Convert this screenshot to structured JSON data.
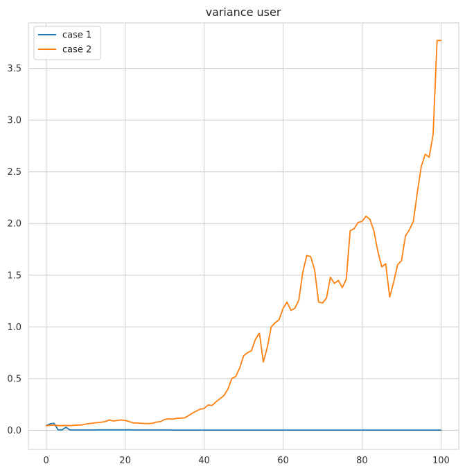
{
  "chart_data": {
    "type": "line",
    "title": "variance user",
    "xlabel": "",
    "ylabel": "",
    "xlim": [
      -4.5,
      104.5
    ],
    "ylim": [
      -0.185,
      3.94
    ],
    "grid": true,
    "legend_position": "top-left",
    "x_ticks": [
      0,
      20,
      40,
      60,
      80,
      100
    ],
    "x_tick_labels": [
      "0",
      "20",
      "40",
      "60",
      "80",
      "100"
    ],
    "y_ticks": [
      0.0,
      0.5,
      1.0,
      1.5,
      2.0,
      2.5,
      3.0,
      3.5
    ],
    "y_tick_labels": [
      "0.0",
      "0.5",
      "1.0",
      "1.5",
      "2.0",
      "2.5",
      "3.0",
      "3.5"
    ],
    "series": [
      {
        "name": "case 1",
        "color": "#1f77b4",
        "x": [
          0,
          1,
          2,
          3,
          4,
          5,
          6,
          7,
          8,
          9,
          10,
          11,
          12,
          13,
          14,
          15,
          16,
          17,
          18,
          19,
          20,
          21,
          22,
          23,
          24,
          25,
          26,
          27,
          28,
          29,
          30,
          31,
          32,
          33,
          34,
          35,
          36,
          37,
          38,
          39,
          40,
          41,
          42,
          43,
          44,
          45,
          46,
          47,
          48,
          49,
          50,
          51,
          52,
          53,
          54,
          55,
          56,
          57,
          58,
          59,
          60,
          61,
          62,
          63,
          64,
          65,
          66,
          67,
          68,
          69,
          70,
          71,
          72,
          73,
          74,
          75,
          76,
          77,
          78,
          79,
          80,
          81,
          82,
          83,
          84,
          85,
          86,
          87,
          88,
          89,
          90,
          91,
          92,
          93,
          94,
          95,
          96,
          97,
          98,
          99,
          100
        ],
        "values": [
          0.045,
          0.062,
          0.068,
          0.005,
          0.004,
          0.03,
          0.004,
          0.003,
          0.003,
          0.003,
          0.003,
          0.003,
          0.003,
          0.004,
          0.004,
          0.004,
          0.004,
          0.004,
          0.004,
          0.004,
          0.004,
          0.005,
          0.003,
          0.003,
          0.003,
          0.003,
          0.003,
          0.003,
          0.003,
          0.003,
          0.003,
          0.003,
          0.002,
          0.002,
          0.002,
          0.002,
          0.002,
          0.002,
          0.002,
          0.002,
          0.002,
          0.002,
          0.002,
          0.002,
          0.002,
          0.002,
          0.002,
          0.002,
          0.002,
          0.002,
          0.002,
          0.002,
          0.002,
          0.002,
          0.002,
          0.002,
          0.002,
          0.002,
          0.002,
          0.002,
          0.002,
          0.002,
          0.002,
          0.002,
          0.002,
          0.002,
          0.002,
          0.002,
          0.002,
          0.002,
          0.002,
          0.002,
          0.002,
          0.002,
          0.002,
          0.002,
          0.002,
          0.002,
          0.002,
          0.002,
          0.002,
          0.002,
          0.002,
          0.002,
          0.002,
          0.002,
          0.002,
          0.002,
          0.002,
          0.002,
          0.002,
          0.002,
          0.002,
          0.002,
          0.002,
          0.002,
          0.002,
          0.002,
          0.002,
          0.002,
          0.002
        ]
      },
      {
        "name": "case 2",
        "color": "#ff7f0e",
        "x": [
          0,
          1,
          2,
          3,
          4,
          5,
          6,
          7,
          8,
          9,
          10,
          11,
          12,
          13,
          14,
          15,
          16,
          17,
          18,
          19,
          20,
          21,
          22,
          23,
          24,
          25,
          26,
          27,
          28,
          29,
          30,
          31,
          32,
          33,
          34,
          35,
          36,
          37,
          38,
          39,
          40,
          41,
          42,
          43,
          44,
          45,
          46,
          47,
          48,
          49,
          50,
          51,
          52,
          53,
          54,
          55,
          56,
          57,
          58,
          59,
          60,
          61,
          62,
          63,
          64,
          65,
          66,
          67,
          68,
          69,
          70,
          71,
          72,
          73,
          74,
          75,
          76,
          77,
          78,
          79,
          80,
          81,
          82,
          83,
          84,
          85,
          86,
          87,
          88,
          89,
          90,
          91,
          92,
          93,
          94,
          95,
          96,
          97,
          98,
          99,
          100
        ],
        "values": [
          0.045,
          0.048,
          0.05,
          0.046,
          0.045,
          0.047,
          0.045,
          0.048,
          0.05,
          0.052,
          0.06,
          0.065,
          0.07,
          0.075,
          0.078,
          0.085,
          0.1,
          0.09,
          0.095,
          0.1,
          0.095,
          0.085,
          0.072,
          0.07,
          0.068,
          0.066,
          0.065,
          0.068,
          0.08,
          0.085,
          0.105,
          0.11,
          0.108,
          0.115,
          0.118,
          0.12,
          0.14,
          0.165,
          0.185,
          0.205,
          0.21,
          0.245,
          0.24,
          0.275,
          0.305,
          0.335,
          0.395,
          0.5,
          0.52,
          0.6,
          0.72,
          0.75,
          0.77,
          0.88,
          0.94,
          0.66,
          0.8,
          1.0,
          1.04,
          1.07,
          1.18,
          1.24,
          1.16,
          1.18,
          1.26,
          1.53,
          1.69,
          1.68,
          1.55,
          1.24,
          1.23,
          1.28,
          1.48,
          1.42,
          1.45,
          1.38,
          1.46,
          1.93,
          1.95,
          2.01,
          2.02,
          2.07,
          2.04,
          1.93,
          1.73,
          1.58,
          1.61,
          1.29,
          1.43,
          1.6,
          1.64,
          1.88,
          1.94,
          2.02,
          2.3,
          2.55,
          2.67,
          2.64,
          2.86,
          3.77,
          3.77
        ]
      }
    ]
  }
}
